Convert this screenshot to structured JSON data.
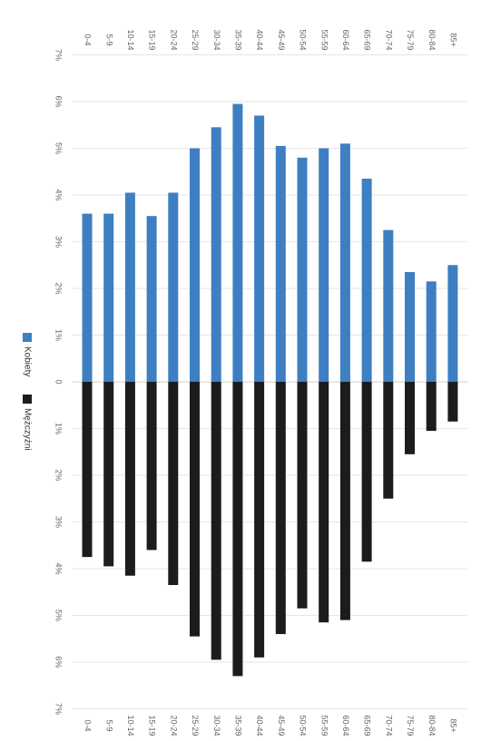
{
  "chart_data": {
    "type": "bar",
    "orientation": "horizontal",
    "rotated": true,
    "categories": [
      "0-4",
      "5-9",
      "10-14",
      "15-19",
      "20-24",
      "25-29",
      "30-34",
      "35-39",
      "40-44",
      "45-49",
      "50-54",
      "55-59",
      "60-64",
      "65-69",
      "70-74",
      "75-79",
      "80-84",
      "85+"
    ],
    "series": [
      {
        "name": "Kobiety",
        "color": "#3d7fc2",
        "values": [
          3.6,
          3.6,
          4.05,
          3.55,
          4.05,
          5.0,
          5.45,
          5.95,
          5.7,
          5.05,
          4.8,
          5.0,
          5.1,
          4.35,
          3.25,
          2.35,
          2.15,
          2.5
        ]
      },
      {
        "name": "Mężczyźni",
        "color": "#1c1c1c",
        "values": [
          -3.75,
          -3.95,
          -4.15,
          -3.6,
          -4.35,
          -5.45,
          -5.95,
          -6.3,
          -5.9,
          -5.4,
          -4.85,
          -5.15,
          -5.1,
          -3.85,
          -2.5,
          -1.55,
          -1.05,
          -0.85
        ]
      }
    ],
    "xlim": [
      -7,
      7
    ],
    "xticks": [
      -7,
      -6,
      -5,
      -4,
      -3,
      -2,
      -1,
      0,
      1,
      2,
      3,
      4,
      5,
      6,
      7
    ],
    "xtick_labels": [
      "7%",
      "6%",
      "5%",
      "4%",
      "3%",
      "2%",
      "1%",
      "0",
      "1%",
      "2%",
      "3%",
      "4%",
      "5%",
      "6%",
      "7%"
    ],
    "grid": true,
    "legend": "left",
    "title": "",
    "xlabel": "",
    "ylabel": ""
  }
}
